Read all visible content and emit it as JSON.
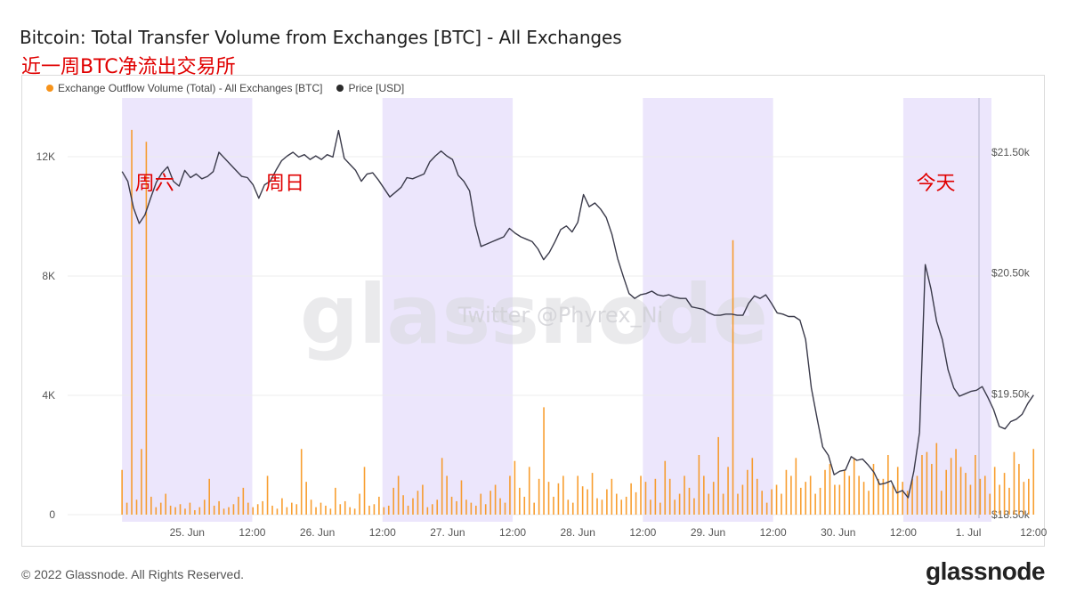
{
  "header": {
    "title": "Bitcoin: Total Transfer Volume from Exchanges [BTC] - All Exchanges",
    "subtitle": "近一周BTC净流出交易所"
  },
  "footer": {
    "copyright": "© 2022 Glassnode. All Rights Reserved.",
    "logo": "glassnode"
  },
  "watermark": {
    "main": "glassnode",
    "secondary": "Twitter @Phyrex_Ni"
  },
  "colors": {
    "outflow": "#f7931a",
    "price": "#3a3a4a",
    "weekend_band": "#ece6fc",
    "annotation": "#e00000",
    "grid": "#ececec",
    "axis_text": "#555555"
  },
  "chart_data": {
    "type": "line",
    "x_start": "2022-06-24 12:00",
    "x_end": "2022-07-01 12:00",
    "legend_placement": "top-left",
    "grid": true,
    "series": [
      {
        "name": "Exchange Outflow Volume (Total) - All Exchanges [BTC]",
        "axis": "left",
        "style": "spikes",
        "values": [
          1500,
          400,
          12900,
          500,
          2200,
          12500,
          600,
          250,
          400,
          700,
          300,
          250,
          350,
          200,
          400,
          150,
          250,
          500,
          1200,
          300,
          450,
          200,
          250,
          350,
          600,
          900,
          400,
          250,
          350,
          450,
          1300,
          300,
          200,
          550,
          250,
          400,
          350,
          2200,
          1100,
          500,
          250,
          400,
          300,
          200,
          900,
          350,
          450,
          250,
          200,
          700,
          1600,
          300,
          350,
          600,
          250,
          300,
          900,
          1300,
          650,
          300,
          550,
          800,
          1000,
          250,
          350,
          500,
          1900,
          1300,
          600,
          450,
          1150,
          500,
          400,
          300,
          700,
          350,
          800,
          1000,
          550,
          400,
          1300,
          1800,
          900,
          600,
          1600,
          400,
          1200,
          3600,
          1100,
          600,
          1050,
          1300,
          500,
          400,
          1300,
          950,
          850,
          1400,
          550,
          500,
          850,
          1200,
          700,
          500,
          600,
          1050,
          750,
          1300,
          1100,
          500,
          1200,
          400,
          1800,
          1200,
          500,
          700,
          1300,
          900,
          550,
          2000,
          1300,
          700,
          1100,
          2600,
          700,
          1600,
          9200,
          700,
          1000,
          1500,
          1900,
          1200,
          800,
          400,
          850,
          1000,
          700,
          1500,
          1300,
          1900,
          900,
          1100,
          1300,
          700,
          900,
          1500,
          1700,
          1000,
          1000,
          1500,
          1300,
          1900,
          1300,
          1100,
          800,
          1700,
          1200,
          1200,
          2000,
          1000,
          1600,
          1100,
          800,
          1200,
          1300,
          2000,
          2100,
          1700,
          2400,
          800,
          1500,
          1900,
          2200,
          1600,
          1400,
          1000,
          2000,
          1200,
          1300,
          700,
          1600,
          1000,
          1400,
          900,
          2100,
          1700,
          1100,
          1200,
          2200
        ]
      },
      {
        "name": "Price [USD]",
        "axis": "right",
        "style": "line",
        "values": [
          21340,
          21260,
          21040,
          20910,
          20980,
          21120,
          21250,
          21330,
          21380,
          21260,
          21220,
          21350,
          21290,
          21320,
          21280,
          21300,
          21340,
          21500,
          21450,
          21400,
          21350,
          21300,
          21290,
          21230,
          21120,
          21230,
          21260,
          21350,
          21430,
          21470,
          21500,
          21460,
          21480,
          21440,
          21470,
          21440,
          21480,
          21460,
          21680,
          21450,
          21400,
          21350,
          21260,
          21320,
          21330,
          21270,
          21200,
          21130,
          21170,
          21210,
          21290,
          21280,
          21300,
          21320,
          21420,
          21470,
          21510,
          21470,
          21440,
          21310,
          21260,
          21180,
          20900,
          20720,
          20740,
          20760,
          20780,
          20800,
          20870,
          20830,
          20800,
          20780,
          20760,
          20700,
          20610,
          20670,
          20760,
          20860,
          20890,
          20840,
          20920,
          21150,
          21050,
          21080,
          21030,
          20960,
          20820,
          20620,
          20470,
          20330,
          20290,
          20320,
          20330,
          20350,
          20320,
          20310,
          20320,
          20300,
          20290,
          20290,
          20220,
          20210,
          20200,
          20170,
          20150,
          20150,
          20160,
          20160,
          20150,
          20150,
          20250,
          20310,
          20290,
          20320,
          20250,
          20170,
          20160,
          20140,
          20140,
          20110,
          19950,
          19550,
          19300,
          19060,
          18990,
          18830,
          18860,
          18870,
          18980,
          18950,
          18960,
          18910,
          18850,
          18750,
          18760,
          18780,
          18680,
          18700,
          18640,
          18860,
          19180,
          20570,
          20370,
          20100,
          19950,
          19700,
          19550,
          19480,
          19500,
          19520,
          19530,
          19560,
          19470,
          19370,
          19230,
          19210,
          19270,
          19290,
          19330,
          19420,
          19490
        ]
      }
    ],
    "left_axis": {
      "min": 0,
      "max": 12000,
      "ticks": [
        0,
        4000,
        8000,
        12000
      ],
      "tick_labels": [
        "0",
        "4K",
        "8K",
        "12K"
      ]
    },
    "right_axis": {
      "min": 18500,
      "max": 21500,
      "ticks": [
        18500,
        19500,
        20500,
        21500
      ],
      "tick_labels": [
        "$18.50k",
        "$19.50k",
        "$20.50k",
        "$21.50k"
      ]
    },
    "x_tick_labels": [
      "25. Jun",
      "12:00",
      "26. Jun",
      "12:00",
      "27. Jun",
      "12:00",
      "28. Jun",
      "12:00",
      "29. Jun",
      "12:00",
      "30. Jun",
      "12:00",
      "1. Jul",
      "12:00"
    ],
    "weekend_band_ranges_days": [
      [
        0.5,
        1.5
      ],
      [
        1.5,
        2.5
      ],
      [
        2.5,
        3.5
      ],
      [
        3.5,
        4.5
      ],
      [
        4.5,
        5.5
      ],
      [
        5.5,
        6.5
      ],
      [
        6.5,
        7.5
      ]
    ],
    "band_shading": [
      true,
      false,
      true,
      false,
      true,
      false,
      true
    ],
    "annotations": [
      {
        "text": "周六",
        "x_day": 0.75,
        "y_price": 21250
      },
      {
        "text": "周日",
        "x_day": 1.75,
        "y_price": 21250
      },
      {
        "text": "今天",
        "x_day": 6.75,
        "y_price": 21250
      }
    ]
  }
}
